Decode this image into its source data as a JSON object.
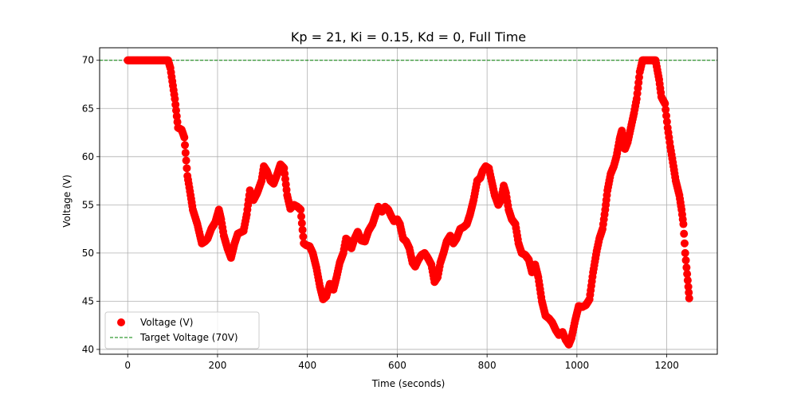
{
  "chart_data": {
    "type": "scatter",
    "title": "Kp = 21, Ki = 0.15, Kd = 0, Full Time",
    "xlabel": "Time (seconds)",
    "ylabel": "Voltage (V)",
    "xlim": [
      -62.5,
      1312.5
    ],
    "ylim": [
      39.5,
      71.3
    ],
    "xticks": [
      0,
      200,
      400,
      600,
      800,
      1000,
      1200
    ],
    "yticks": [
      40,
      45,
      50,
      55,
      60,
      65,
      70
    ],
    "xtick_labels": [
      "0",
      "200",
      "400",
      "600",
      "800",
      "1000",
      "1200"
    ],
    "ytick_labels": [
      "40",
      "45",
      "50",
      "55",
      "60",
      "65",
      "70"
    ],
    "grid": true,
    "legend_position": "lower-left",
    "series": [
      {
        "name": "Voltage (V)",
        "color": "#ff0000",
        "marker": "circle",
        "anchors": [
          [
            0,
            70
          ],
          [
            90,
            70
          ],
          [
            95,
            69.2
          ],
          [
            105,
            66
          ],
          [
            112,
            63
          ],
          [
            120,
            62.8
          ],
          [
            126,
            62
          ],
          [
            133,
            58
          ],
          [
            140,
            56
          ],
          [
            145,
            54.5
          ],
          [
            155,
            53
          ],
          [
            165,
            51
          ],
          [
            172,
            51.2
          ],
          [
            178,
            51.5
          ],
          [
            186,
            52.5
          ],
          [
            195,
            53.2
          ],
          [
            203,
            54.5
          ],
          [
            208,
            53.5
          ],
          [
            214,
            51.8
          ],
          [
            222,
            50.5
          ],
          [
            230,
            49.5
          ],
          [
            238,
            51
          ],
          [
            245,
            52
          ],
          [
            258,
            52.3
          ],
          [
            265,
            54
          ],
          [
            272,
            56.5
          ],
          [
            280,
            55.5
          ],
          [
            288,
            56.2
          ],
          [
            298,
            57.5
          ],
          [
            303,
            59
          ],
          [
            310,
            58.5
          ],
          [
            318,
            57.5
          ],
          [
            325,
            57.2
          ],
          [
            333,
            58.2
          ],
          [
            340,
            59.2
          ],
          [
            348,
            58.8
          ],
          [
            355,
            56
          ],
          [
            362,
            54.6
          ],
          [
            370,
            55
          ],
          [
            378,
            54.8
          ],
          [
            385,
            54.5
          ],
          [
            392,
            51
          ],
          [
            398,
            50.8
          ],
          [
            405,
            50.7
          ],
          [
            412,
            50
          ],
          [
            420,
            48.5
          ],
          [
            428,
            46.5
          ],
          [
            435,
            45.2
          ],
          [
            442,
            45.5
          ],
          [
            450,
            46.8
          ],
          [
            458,
            46.2
          ],
          [
            465,
            47.5
          ],
          [
            472,
            49
          ],
          [
            480,
            50
          ],
          [
            486,
            51.5
          ],
          [
            493,
            51.2
          ],
          [
            498,
            50.5
          ],
          [
            505,
            51.5
          ],
          [
            512,
            52.2
          ],
          [
            520,
            51.3
          ],
          [
            528,
            51.2
          ],
          [
            536,
            52.3
          ],
          [
            545,
            53
          ],
          [
            552,
            54
          ],
          [
            558,
            54.8
          ],
          [
            566,
            54.3
          ],
          [
            573,
            54.8
          ],
          [
            580,
            54.5
          ],
          [
            587,
            53.8
          ],
          [
            593,
            53.3
          ],
          [
            600,
            53.5
          ],
          [
            606,
            53
          ],
          [
            613,
            51.5
          ],
          [
            620,
            51.2
          ],
          [
            627,
            50.5
          ],
          [
            634,
            49
          ],
          [
            640,
            48.6
          ],
          [
            647,
            49.3
          ],
          [
            654,
            49.8
          ],
          [
            661,
            50
          ],
          [
            668,
            49.5
          ],
          [
            676,
            48.8
          ],
          [
            683,
            47
          ],
          [
            690,
            47.5
          ],
          [
            696,
            49
          ],
          [
            703,
            50
          ],
          [
            710,
            51.2
          ],
          [
            718,
            51.8
          ],
          [
            725,
            51
          ],
          [
            732,
            51.5
          ],
          [
            740,
            52.5
          ],
          [
            748,
            52.7
          ],
          [
            755,
            53
          ],
          [
            762,
            54
          ],
          [
            770,
            55.5
          ],
          [
            778,
            57.5
          ],
          [
            785,
            57.8
          ],
          [
            790,
            58.5
          ],
          [
            797,
            59
          ],
          [
            804,
            58.8
          ],
          [
            810,
            57.5
          ],
          [
            817,
            56
          ],
          [
            825,
            55
          ],
          [
            831,
            55.5
          ],
          [
            837,
            57
          ],
          [
            842,
            56.2
          ],
          [
            848,
            54.5
          ],
          [
            855,
            53.5
          ],
          [
            863,
            53
          ],
          [
            870,
            51
          ],
          [
            877,
            50
          ],
          [
            885,
            49.8
          ],
          [
            893,
            49.3
          ],
          [
            900,
            48
          ],
          [
            907,
            48.8
          ],
          [
            914,
            47.5
          ],
          [
            922,
            45
          ],
          [
            930,
            43.5
          ],
          [
            938,
            43.2
          ],
          [
            945,
            42.8
          ],
          [
            953,
            42
          ],
          [
            960,
            41.5
          ],
          [
            968,
            41.8
          ],
          [
            975,
            41
          ],
          [
            982,
            40.5
          ],
          [
            988,
            41.2
          ],
          [
            996,
            43
          ],
          [
            1004,
            44.5
          ],
          [
            1012,
            44.4
          ],
          [
            1020,
            44.6
          ],
          [
            1028,
            45.2
          ],
          [
            1036,
            48
          ],
          [
            1044,
            50.2
          ],
          [
            1050,
            51.5
          ],
          [
            1057,
            52.5
          ],
          [
            1063,
            54.5
          ],
          [
            1068,
            56.5
          ],
          [
            1075,
            58.2
          ],
          [
            1082,
            59
          ],
          [
            1088,
            60
          ],
          [
            1095,
            61.8
          ],
          [
            1100,
            62.7
          ],
          [
            1107,
            60.8
          ],
          [
            1113,
            61.5
          ],
          [
            1120,
            63
          ],
          [
            1127,
            64.5
          ],
          [
            1133,
            66
          ],
          [
            1140,
            68.8
          ],
          [
            1146,
            70
          ],
          [
            1175,
            70
          ],
          [
            1183,
            68
          ],
          [
            1188,
            66.2
          ],
          [
            1196,
            65.5
          ],
          [
            1202,
            63
          ],
          [
            1208,
            61
          ],
          [
            1215,
            59
          ],
          [
            1220,
            57.5
          ],
          [
            1228,
            56
          ],
          [
            1233,
            54.5
          ],
          [
            1237,
            53
          ],
          [
            1241,
            50
          ],
          [
            1244,
            48.5
          ],
          [
            1248,
            46.5
          ],
          [
            1250,
            45.3
          ]
        ]
      }
    ],
    "reference_line": {
      "name": "Target Voltage (70V)",
      "y": 70,
      "color": "#008000",
      "style": "dashed"
    }
  },
  "legend": {
    "items": [
      {
        "label": "Voltage (V)"
      },
      {
        "label": "Target Voltage (70V)"
      }
    ]
  }
}
